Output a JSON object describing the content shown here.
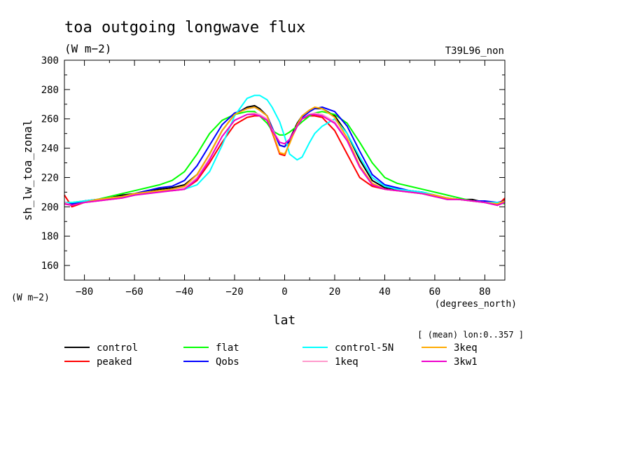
{
  "chart_data": {
    "type": "line",
    "title": "toa outgoing longwave flux",
    "subtitle": "(W m−2)",
    "experiment_label": "T39L96_non",
    "ylabel": "sh_lw_toa_zonal",
    "y_units_label": "(W m−2)",
    "xlabel": "lat",
    "x_units_label": "(degrees_north)",
    "averaging_note": "[ (mean) lon:0..357 ]",
    "xlim": [
      -88,
      88
    ],
    "ylim": [
      150,
      300
    ],
    "x_ticks": [
      -80,
      -60,
      -40,
      -20,
      0,
      20,
      40,
      60,
      80
    ],
    "y_ticks": [
      160,
      180,
      200,
      220,
      240,
      260,
      280,
      300
    ],
    "grid": false,
    "legend_position": "bottom",
    "x": [
      -88,
      -85,
      -80,
      -75,
      -70,
      -65,
      -60,
      -55,
      -50,
      -45,
      -40,
      -35,
      -30,
      -25,
      -20,
      -15,
      -12,
      -10,
      -7,
      -5,
      -2,
      0,
      2,
      5,
      7,
      10,
      12,
      15,
      20,
      25,
      30,
      35,
      40,
      45,
      50,
      55,
      60,
      65,
      70,
      75,
      80,
      85,
      88
    ],
    "series": [
      {
        "name": "control",
        "color": "#000000",
        "values": [
          203,
          201,
          204,
          205,
          206,
          208,
          209,
          211,
          212,
          213,
          215,
          222,
          236,
          252,
          263,
          268,
          269,
          267,
          262,
          254,
          242,
          241,
          246,
          257,
          262,
          266,
          267,
          267,
          262,
          250,
          232,
          218,
          213,
          212,
          211,
          210,
          208,
          206,
          205,
          205,
          203,
          202,
          205
        ]
      },
      {
        "name": "peaked",
        "color": "#ff0000",
        "values": [
          208,
          200,
          203,
          204,
          205,
          206,
          208,
          210,
          211,
          211,
          212,
          218,
          230,
          244,
          256,
          261,
          262,
          262,
          259,
          251,
          236,
          235,
          244,
          255,
          260,
          262,
          262,
          261,
          252,
          236,
          220,
          214,
          212,
          211,
          210,
          209,
          207,
          206,
          205,
          204,
          203,
          201,
          206
        ]
      },
      {
        "name": "flat",
        "color": "#00ff00",
        "values": [
          203,
          203,
          204,
          205,
          207,
          209,
          211,
          213,
          215,
          218,
          224,
          236,
          250,
          259,
          263,
          265,
          265,
          262,
          257,
          252,
          249,
          249,
          251,
          255,
          258,
          262,
          264,
          265,
          263,
          257,
          244,
          230,
          220,
          216,
          214,
          212,
          210,
          208,
          206,
          204,
          203,
          203,
          202
        ]
      },
      {
        "name": "Qobs",
        "color": "#0000ff",
        "values": [
          203,
          202,
          204,
          205,
          206,
          207,
          209,
          211,
          213,
          214,
          218,
          228,
          242,
          256,
          264,
          267,
          268,
          266,
          262,
          254,
          242,
          241,
          245,
          255,
          261,
          265,
          267,
          268,
          265,
          255,
          238,
          222,
          215,
          213,
          211,
          210,
          208,
          206,
          205,
          204,
          204,
          203,
          204
        ]
      },
      {
        "name": "control-5N",
        "color": "#00ffff",
        "values": [
          203,
          203,
          204,
          205,
          206,
          207,
          208,
          210,
          211,
          212,
          212,
          215,
          224,
          242,
          262,
          274,
          276,
          276,
          273,
          268,
          258,
          248,
          236,
          232,
          234,
          244,
          250,
          255,
          260,
          250,
          234,
          220,
          214,
          212,
          211,
          210,
          208,
          206,
          205,
          204,
          203,
          203,
          203
        ]
      },
      {
        "name": "1keq",
        "color": "#ff99cc",
        "values": [
          203,
          201,
          203,
          204,
          205,
          206,
          208,
          209,
          210,
          211,
          213,
          220,
          233,
          248,
          259,
          263,
          264,
          263,
          260,
          253,
          244,
          243,
          246,
          255,
          260,
          263,
          264,
          263,
          258,
          246,
          228,
          216,
          212,
          211,
          210,
          209,
          208,
          206,
          205,
          204,
          203,
          202,
          204
        ]
      },
      {
        "name": "3keq",
        "color": "#ffaa00",
        "values": [
          202,
          201,
          203,
          205,
          206,
          207,
          209,
          210,
          211,
          212,
          214,
          222,
          236,
          252,
          263,
          267,
          268,
          266,
          262,
          252,
          237,
          236,
          243,
          256,
          262,
          266,
          268,
          267,
          261,
          247,
          228,
          216,
          212,
          211,
          210,
          209,
          208,
          206,
          205,
          204,
          203,
          202,
          204
        ]
      },
      {
        "name": "3kw1",
        "color": "#ee00cc",
        "values": [
          202,
          201,
          203,
          204,
          205,
          206,
          208,
          209,
          210,
          211,
          212,
          219,
          232,
          248,
          259,
          263,
          263,
          262,
          259,
          252,
          244,
          243,
          246,
          255,
          260,
          263,
          263,
          262,
          257,
          245,
          227,
          215,
          212,
          211,
          210,
          209,
          207,
          205,
          205,
          204,
          203,
          201,
          203
        ]
      }
    ]
  }
}
